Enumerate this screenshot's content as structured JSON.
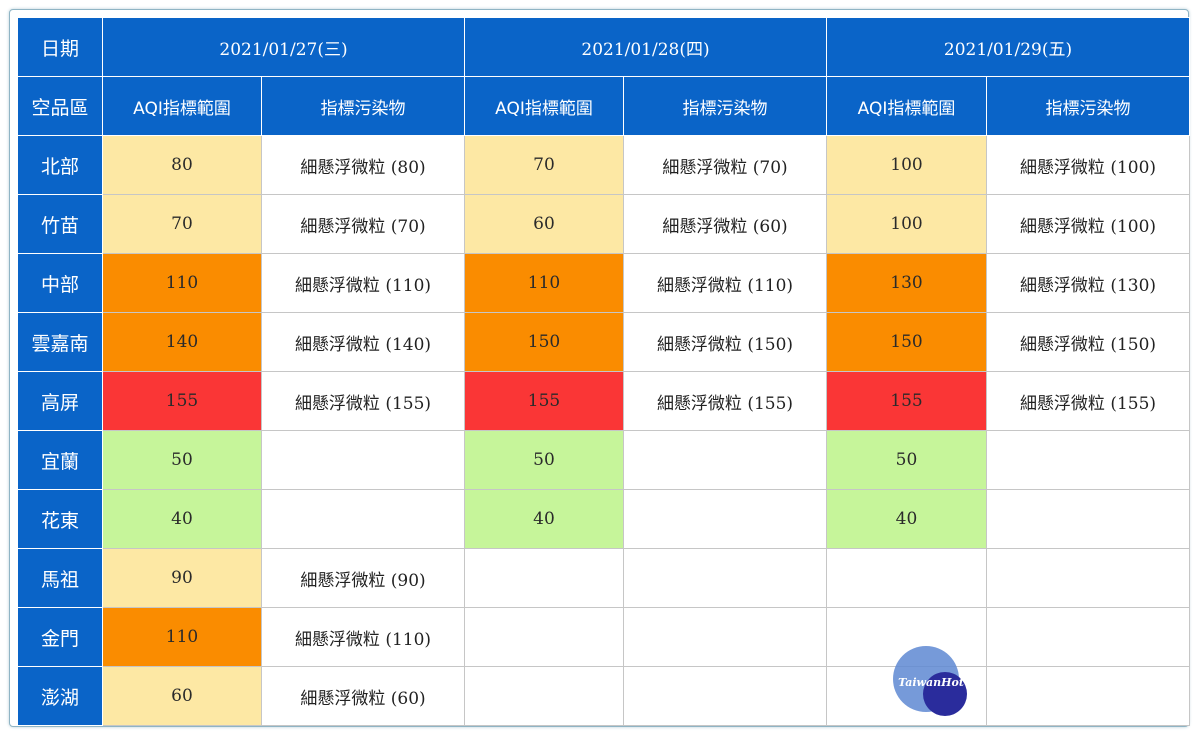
{
  "header": {
    "date_label": "日期",
    "region_label": "空品區",
    "dates": [
      "2021/01/27(三)",
      "2021/01/28(四)",
      "2021/01/29(五)"
    ],
    "aqi_label": "AQI指標範圍",
    "pollutant_label": "指標污染物"
  },
  "rows": [
    {
      "region": "北部",
      "cells": [
        {
          "aqi": "80",
          "level": "moderate",
          "pollutant": "細懸浮微粒 (80)"
        },
        {
          "aqi": "70",
          "level": "moderate",
          "pollutant": "細懸浮微粒 (70)"
        },
        {
          "aqi": "100",
          "level": "moderate",
          "pollutant": "細懸浮微粒 (100)"
        }
      ]
    },
    {
      "region": "竹苗",
      "cells": [
        {
          "aqi": "70",
          "level": "moderate",
          "pollutant": "細懸浮微粒 (70)"
        },
        {
          "aqi": "60",
          "level": "moderate",
          "pollutant": "細懸浮微粒 (60)"
        },
        {
          "aqi": "100",
          "level": "moderate",
          "pollutant": "細懸浮微粒 (100)"
        }
      ]
    },
    {
      "region": "中部",
      "cells": [
        {
          "aqi": "110",
          "level": "usg",
          "pollutant": "細懸浮微粒 (110)"
        },
        {
          "aqi": "110",
          "level": "usg",
          "pollutant": "細懸浮微粒 (110)"
        },
        {
          "aqi": "130",
          "level": "usg",
          "pollutant": "細懸浮微粒 (130)"
        }
      ]
    },
    {
      "region": "雲嘉南",
      "cells": [
        {
          "aqi": "140",
          "level": "usg",
          "pollutant": "細懸浮微粒 (140)"
        },
        {
          "aqi": "150",
          "level": "usg",
          "pollutant": "細懸浮微粒 (150)"
        },
        {
          "aqi": "150",
          "level": "usg",
          "pollutant": "細懸浮微粒 (150)"
        }
      ]
    },
    {
      "region": "高屏",
      "cells": [
        {
          "aqi": "155",
          "level": "unhealthy",
          "pollutant": "細懸浮微粒 (155)"
        },
        {
          "aqi": "155",
          "level": "unhealthy",
          "pollutant": "細懸浮微粒 (155)"
        },
        {
          "aqi": "155",
          "level": "unhealthy",
          "pollutant": "細懸浮微粒 (155)"
        }
      ]
    },
    {
      "region": "宜蘭",
      "cells": [
        {
          "aqi": "50",
          "level": "good",
          "pollutant": ""
        },
        {
          "aqi": "50",
          "level": "good",
          "pollutant": ""
        },
        {
          "aqi": "50",
          "level": "good",
          "pollutant": ""
        }
      ]
    },
    {
      "region": "花東",
      "cells": [
        {
          "aqi": "40",
          "level": "good",
          "pollutant": ""
        },
        {
          "aqi": "40",
          "level": "good",
          "pollutant": ""
        },
        {
          "aqi": "40",
          "level": "good",
          "pollutant": ""
        }
      ]
    },
    {
      "region": "馬祖",
      "cells": [
        {
          "aqi": "90",
          "level": "moderate",
          "pollutant": "細懸浮微粒 (90)"
        },
        {
          "aqi": "",
          "level": "empty",
          "pollutant": ""
        },
        {
          "aqi": "",
          "level": "empty",
          "pollutant": ""
        }
      ]
    },
    {
      "region": "金門",
      "cells": [
        {
          "aqi": "110",
          "level": "usg",
          "pollutant": "細懸浮微粒 (110)"
        },
        {
          "aqi": "",
          "level": "empty",
          "pollutant": ""
        },
        {
          "aqi": "",
          "level": "empty",
          "pollutant": ""
        }
      ]
    },
    {
      "region": "澎湖",
      "cells": [
        {
          "aqi": "60",
          "level": "moderate",
          "pollutant": "細懸浮微粒 (60)"
        },
        {
          "aqi": "",
          "level": "empty",
          "pollutant": ""
        },
        {
          "aqi": "",
          "level": "empty",
          "pollutant": ""
        }
      ]
    }
  ],
  "colors": {
    "header_blue": "#0a64c8",
    "good": "#c6f59a",
    "moderate": "#fde8a4",
    "usg": "#fa8c00",
    "unhealthy": "#fa3636"
  },
  "watermark": {
    "text": "TaiwanHot"
  }
}
